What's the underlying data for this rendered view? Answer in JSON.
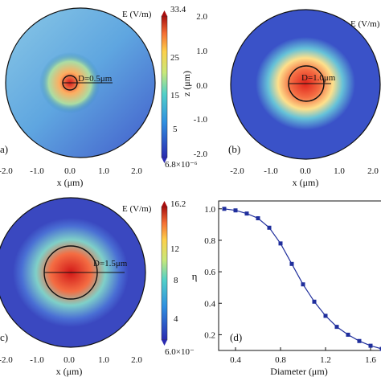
{
  "chart_data": [
    {
      "panel": "(a)",
      "type": "heatmap",
      "legend_title": "E (V/m)",
      "colorbar_max": "33.4",
      "colorbar_ticks": [
        "25",
        "15",
        "5"
      ],
      "colorbar_min": "6.8×10⁻⁶",
      "x_ticks": [
        "-2.0",
        "-1.0",
        "0.0",
        "1.0",
        "2.0"
      ],
      "xlabel": "x (μm)",
      "annotation": "D=0.5μm",
      "diameter_um": 0.5
    },
    {
      "panel": "(b)",
      "type": "heatmap",
      "legend_title": "E (V/m)",
      "y_ticks": [
        "2.0",
        "1.0",
        "0.0",
        "-1.0",
        "-2.0"
      ],
      "ylabel": "z (μm)",
      "x_ticks": [
        "-2.0",
        "-1.0",
        "0.0",
        "1.0",
        "2.0"
      ],
      "xlabel": "x (μm)",
      "annotation": "D=1.0μm",
      "diameter_um": 1.0
    },
    {
      "panel": "(c)",
      "type": "heatmap",
      "legend_title": "E (V/m)",
      "colorbar_max": "16.2",
      "colorbar_ticks": [
        "12",
        "8",
        "4"
      ],
      "colorbar_min": "6.0×10⁻",
      "x_ticks": [
        "-2.0",
        "-1.0",
        "0.0",
        "1.0",
        "2.0"
      ],
      "xlabel": "x (μm)",
      "annotation": "D=1.5μm",
      "diameter_um": 1.5
    },
    {
      "panel": "(d)",
      "type": "line",
      "xlabel": "Diameter (μm)",
      "ylabel": "η",
      "xlim": [
        0.25,
        1.75
      ],
      "ylim": [
        0.1,
        1.05
      ],
      "x_ticks": [
        0.4,
        0.8,
        1.2,
        1.6
      ],
      "y_ticks": [
        0.2,
        0.4,
        0.6,
        0.8,
        1.0
      ],
      "series": [
        {
          "x": [
            0.3,
            0.4,
            0.5,
            0.6,
            0.7,
            0.8,
            0.9,
            1.0,
            1.1,
            1.2,
            1.3,
            1.4,
            1.5,
            1.6,
            1.7
          ],
          "y": [
            1.0,
            0.99,
            0.97,
            0.94,
            0.88,
            0.78,
            0.65,
            0.52,
            0.41,
            0.32,
            0.25,
            0.2,
            0.16,
            0.13,
            0.11
          ]
        }
      ]
    }
  ]
}
